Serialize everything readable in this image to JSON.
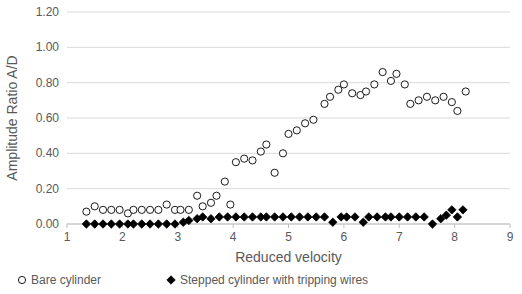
{
  "chart_data": {
    "type": "scatter",
    "x_label": "Reduced velocity",
    "y_label": "Amplitude Ratio A/D",
    "xlim": [
      1,
      9
    ],
    "xticks": [
      1,
      2,
      3,
      4,
      5,
      6,
      7,
      8,
      9
    ],
    "ylim": [
      0,
      1.2
    ],
    "yticks": [
      {
        "value": 0,
        "label": "0.00"
      },
      {
        "value": 0.2,
        "label": "0.20"
      },
      {
        "value": 0.4,
        "label": "0.40"
      },
      {
        "value": 0.6,
        "label": "0.60"
      },
      {
        "value": 0.8,
        "label": "0.80"
      },
      {
        "value": 1.0,
        "label": "1.00"
      },
      {
        "value": 1.2,
        "label": "1.20"
      }
    ],
    "grid": true,
    "legend": "bottom",
    "series": [
      {
        "name": "Bare cylinder",
        "color": "#000000",
        "marker": "open-circle",
        "x": [
          1.35,
          1.5,
          1.65,
          1.8,
          1.95,
          2.1,
          2.2,
          2.35,
          2.5,
          2.65,
          2.8,
          2.95,
          3.05,
          3.2,
          3.35,
          3.45,
          3.6,
          3.7,
          3.85,
          3.95,
          4.05,
          4.2,
          4.35,
          4.5,
          4.6,
          4.75,
          4.9,
          5.0,
          5.15,
          5.3,
          5.45,
          5.65,
          5.75,
          5.9,
          6.0,
          6.15,
          6.3,
          6.4,
          6.55,
          6.7,
          6.85,
          6.95,
          7.1,
          7.2,
          7.35,
          7.5,
          7.65,
          7.8,
          7.95,
          8.05,
          8.2
        ],
        "values": [
          0.07,
          0.1,
          0.08,
          0.08,
          0.08,
          0.06,
          0.08,
          0.08,
          0.08,
          0.08,
          0.11,
          0.08,
          0.08,
          0.08,
          0.16,
          0.1,
          0.12,
          0.16,
          0.24,
          0.11,
          0.35,
          0.37,
          0.36,
          0.41,
          0.45,
          0.29,
          0.4,
          0.51,
          0.53,
          0.57,
          0.59,
          0.68,
          0.72,
          0.76,
          0.79,
          0.74,
          0.73,
          0.75,
          0.79,
          0.86,
          0.81,
          0.85,
          0.79,
          0.68,
          0.7,
          0.72,
          0.7,
          0.72,
          0.69,
          0.64,
          0.75
        ]
      },
      {
        "name": "Stepped cylinder with tripping wires",
        "color": "#000000",
        "marker": "diamond",
        "x": [
          1.35,
          1.5,
          1.65,
          1.8,
          1.95,
          2.1,
          2.2,
          2.35,
          2.5,
          2.65,
          2.8,
          2.95,
          3.1,
          3.2,
          3.35,
          3.45,
          3.6,
          3.75,
          3.9,
          4.05,
          4.2,
          4.35,
          4.5,
          4.6,
          4.75,
          4.9,
          5.05,
          5.2,
          5.35,
          5.5,
          5.65,
          5.8,
          5.95,
          6.05,
          6.2,
          6.35,
          6.45,
          6.6,
          6.75,
          6.85,
          7.0,
          7.15,
          7.3,
          7.45,
          7.6,
          7.75,
          7.85,
          7.95,
          8.05,
          8.15
        ],
        "values": [
          0,
          0,
          0,
          0,
          0,
          0,
          0,
          0,
          0,
          0,
          0,
          0,
          0.01,
          0.02,
          0.03,
          0.04,
          0.03,
          0.04,
          0.04,
          0.04,
          0.04,
          0.04,
          0.04,
          0.04,
          0.04,
          0.04,
          0.04,
          0.04,
          0.04,
          0.04,
          0.04,
          0.01,
          0.04,
          0.04,
          0.04,
          0.01,
          0.04,
          0.04,
          0.04,
          0.04,
          0.04,
          0.04,
          0.04,
          0.04,
          0.0,
          0.03,
          0.05,
          0.08,
          0.04,
          0.08
        ]
      }
    ]
  }
}
